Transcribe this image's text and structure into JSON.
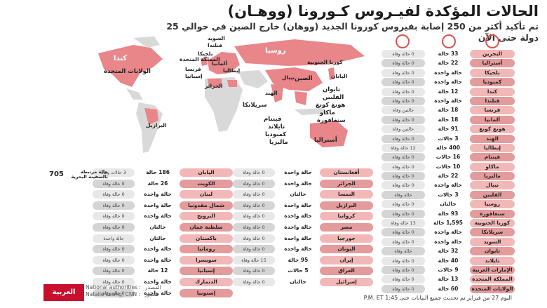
{
  "header": {
    "title": "الحالات المؤكدة لفيـروس كـورونا (ووهـان)",
    "subtitle": "تم تأكيد أكثر من 250 إصابة بفيروس كورونا الجديد (ووهان) خارج الصين في حوالي 25 دولة حتى الآن"
  },
  "map": {
    "labels": {
      "canada": "كندا",
      "usa": "الولايات المتحدة",
      "brazil": "البرازيل",
      "russia": "روسيا",
      "china": "الصين",
      "india": "الهند",
      "nepal": "نيبال",
      "japan": "اليابان",
      "south_korea": "كوريا الجنوبية",
      "uk": "المملكة المتحدة",
      "france": "فرنسا",
      "spain": "إسبانيا",
      "belgium": "بلجيكا",
      "sweden": "السويد",
      "finland": "فنلندا",
      "germany": "ألمانيا",
      "italy": "إيطاليا",
      "algeria": "الجزائر",
      "taiwan": "تايوان",
      "philippines": "الفلبين",
      "hongkong": "هونغ كونغ",
      "macau": "ماكاو",
      "singapore": "سنغافورة",
      "vietnam": "فيتنام",
      "thailand": "تايلاند",
      "cambodia": "كمبوديا",
      "malaysia": "ماليزيا",
      "srilanka": "سريلانكا",
      "australia": "أستراليا"
    }
  },
  "right_table": {
    "rows": [
      {
        "country": "البحرين",
        "cases": "33 حالة",
        "deaths": "0 حالة وفاة"
      },
      {
        "country": "أستراليا",
        "cases": "22 حالة",
        "deaths": "0 حالة وفاة"
      },
      {
        "country": "بلجيكا",
        "cases": "حالة واحدة",
        "deaths": "0 حالة وفاة"
      },
      {
        "country": "كمبوديا",
        "cases": "حالة واحدة",
        "deaths": "0 حالة وفاة"
      },
      {
        "country": "كندا",
        "cases": "12 حالة",
        "deaths": "0 حالة وفاة"
      },
      {
        "country": "فنلندا",
        "cases": "حالة واحدة",
        "deaths": "0 حالة وفاة"
      },
      {
        "country": "فرنسا",
        "cases": "18 حالة",
        "deaths": "حالتين وفاة"
      },
      {
        "country": "ألمانيا",
        "cases": "18 حالة",
        "deaths": "0 حالة وفاة"
      },
      {
        "country": "هونغ كونغ",
        "cases": "91 حالة",
        "deaths": "حالتين وفاة"
      },
      {
        "country": "الهند",
        "cases": "3 حالات",
        "deaths": "0 حالة وفاة"
      },
      {
        "country": "إيطاليا",
        "cases": "400 حالة",
        "deaths": "12 حالة وفاة"
      },
      {
        "country": "فيتنام",
        "cases": "16 حالات",
        "deaths": "0 حالة وفاة"
      },
      {
        "country": "ماكاو",
        "cases": "10 حالات",
        "deaths": "0 حالة وفاة"
      },
      {
        "country": "ماليزيا",
        "cases": "22 حالة",
        "deaths": "0 حالة وفاة"
      },
      {
        "country": "نيبال",
        "cases": "حالة واحدة",
        "deaths": "0 حالة وفاة"
      },
      {
        "country": "الفلبين",
        "cases": "3 حالات",
        "deaths": "حالة وفاة"
      },
      {
        "country": "روسيا",
        "cases": "حالتان",
        "deaths": "0 حالة وفاة"
      },
      {
        "country": "سنغافورة",
        "cases": "93 حالة",
        "deaths": "0 حالة وفاة"
      },
      {
        "country": "كوريا الجنوبية",
        "cases": "1,595 حالة",
        "deaths": "13 حالة وفاة"
      },
      {
        "country": "سريلانكا",
        "cases": "حالة واحدة",
        "deaths": "0 حالة وفاة"
      },
      {
        "country": "السويد",
        "cases": "حالة واحدة",
        "deaths": "0 حالة وفاة"
      },
      {
        "country": "تايوان",
        "cases": "32 حالة",
        "deaths": "حالة وفاة"
      },
      {
        "country": "تايلاند",
        "cases": "40 حالة",
        "deaths": "0 حالة وفاة"
      },
      {
        "country": "الإمارات العربية المتحدة",
        "cases": "9 حالات",
        "deaths": "0 حالة وفاة"
      },
      {
        "country": "المملكة المتحدة",
        "cases": "13 حالة",
        "deaths": "0 حالة وفاة"
      },
      {
        "country": "الولايات المتحدة",
        "cases": "60 حالة",
        "deaths": "0 حالة وفاة"
      }
    ]
  },
  "middle_table": {
    "rows": [
      {
        "country": "أفغانستان",
        "cases": "حالة واحدة",
        "deaths": "0 حالة وفاة"
      },
      {
        "country": "الجزائر",
        "cases": "حالة واحدة",
        "deaths": "0 حالة وفاة"
      },
      {
        "country": "النمسا",
        "cases": "حالتان",
        "deaths": "0 حالة وفاة"
      },
      {
        "country": "البرازيل",
        "cases": "حالة واحدة",
        "deaths": "0 حالة وفاة"
      },
      {
        "country": "كرواتيا",
        "cases": "حالة واحدة",
        "deaths": "0 حالة وفاة"
      },
      {
        "country": "مصر",
        "cases": "حالة واحدة",
        "deaths": "0 حالة وفاة"
      },
      {
        "country": "جورجيا",
        "cases": "حالة واحدة",
        "deaths": "0 حالة وفاة"
      },
      {
        "country": "اليونان",
        "cases": "حالة واحدة",
        "deaths": "0 حالة وفاة"
      },
      {
        "country": "إيران",
        "cases": "95 حالة",
        "deaths": "15 حالة وفاة"
      },
      {
        "country": "العراق",
        "cases": "5 حالات",
        "deaths": "0 حالة وفاة"
      },
      {
        "country": "إسرائيل",
        "cases": "حالتان",
        "deaths": "0 حالة وفاة"
      }
    ]
  },
  "left_table": {
    "rows": [
      {
        "country": "اليابان",
        "cases": "186 حالة",
        "deaths": "3 حالات وفاة"
      },
      {
        "country": "الكويت",
        "cases": "26 حالة",
        "deaths": "0 حالة وفاة"
      },
      {
        "country": "لبنان",
        "cases": "حالة واحدة",
        "deaths": "0 حالة وفاة"
      },
      {
        "country": "شمال مقدونيا",
        "cases": "حالة واحدة",
        "deaths": "0 حالة وفاة"
      },
      {
        "country": "النرويج",
        "cases": "حالة واحدة",
        "deaths": "0 حالة وفاة"
      },
      {
        "country": "سلطنة عمان",
        "cases": "حالتان",
        "deaths": "0 حالة وفاة"
      },
      {
        "country": "باكستان",
        "cases": "حالتان",
        "deaths": "حالة واحدة"
      },
      {
        "country": "رومانيا",
        "cases": "حالة واحدة",
        "deaths": "0 حالة وفاة"
      },
      {
        "country": "سويسرا",
        "cases": "حالة واحدة",
        "deaths": "0 حالة وفاة"
      },
      {
        "country": "إسبانيا",
        "cases": "12 حالة",
        "deaths": "0 حالة وفاة"
      },
      {
        "country": "الدنمارك",
        "cases": "حالة واحدة",
        "deaths": "0 حالة وفاة"
      },
      {
        "country": "إستونيا",
        "cases": "حالة واحدة",
        "deaths": "0 حالة وفاة"
      }
    ]
  },
  "ship": {
    "number": "705",
    "text": "حالة مرتبطة بالسفينة البحرية"
  },
  "footer": {
    "updated": "اليوم 27 من فبراير  تم تحديث جميع البيانات حتى 1:45 P.M. ET"
  },
  "source": {
    "source_key": "المصدر",
    "source_val": "National authorities :",
    "photo_key": "الصور",
    "photo_val": "Natalie Leung, CNN :"
  },
  "logo": {
    "text": "العربية CNN"
  },
  "colors": {
    "accent": "#d9534f",
    "land": "#d9d9d9",
    "affected": "#e8868a",
    "row": "#f2b8b8"
  }
}
